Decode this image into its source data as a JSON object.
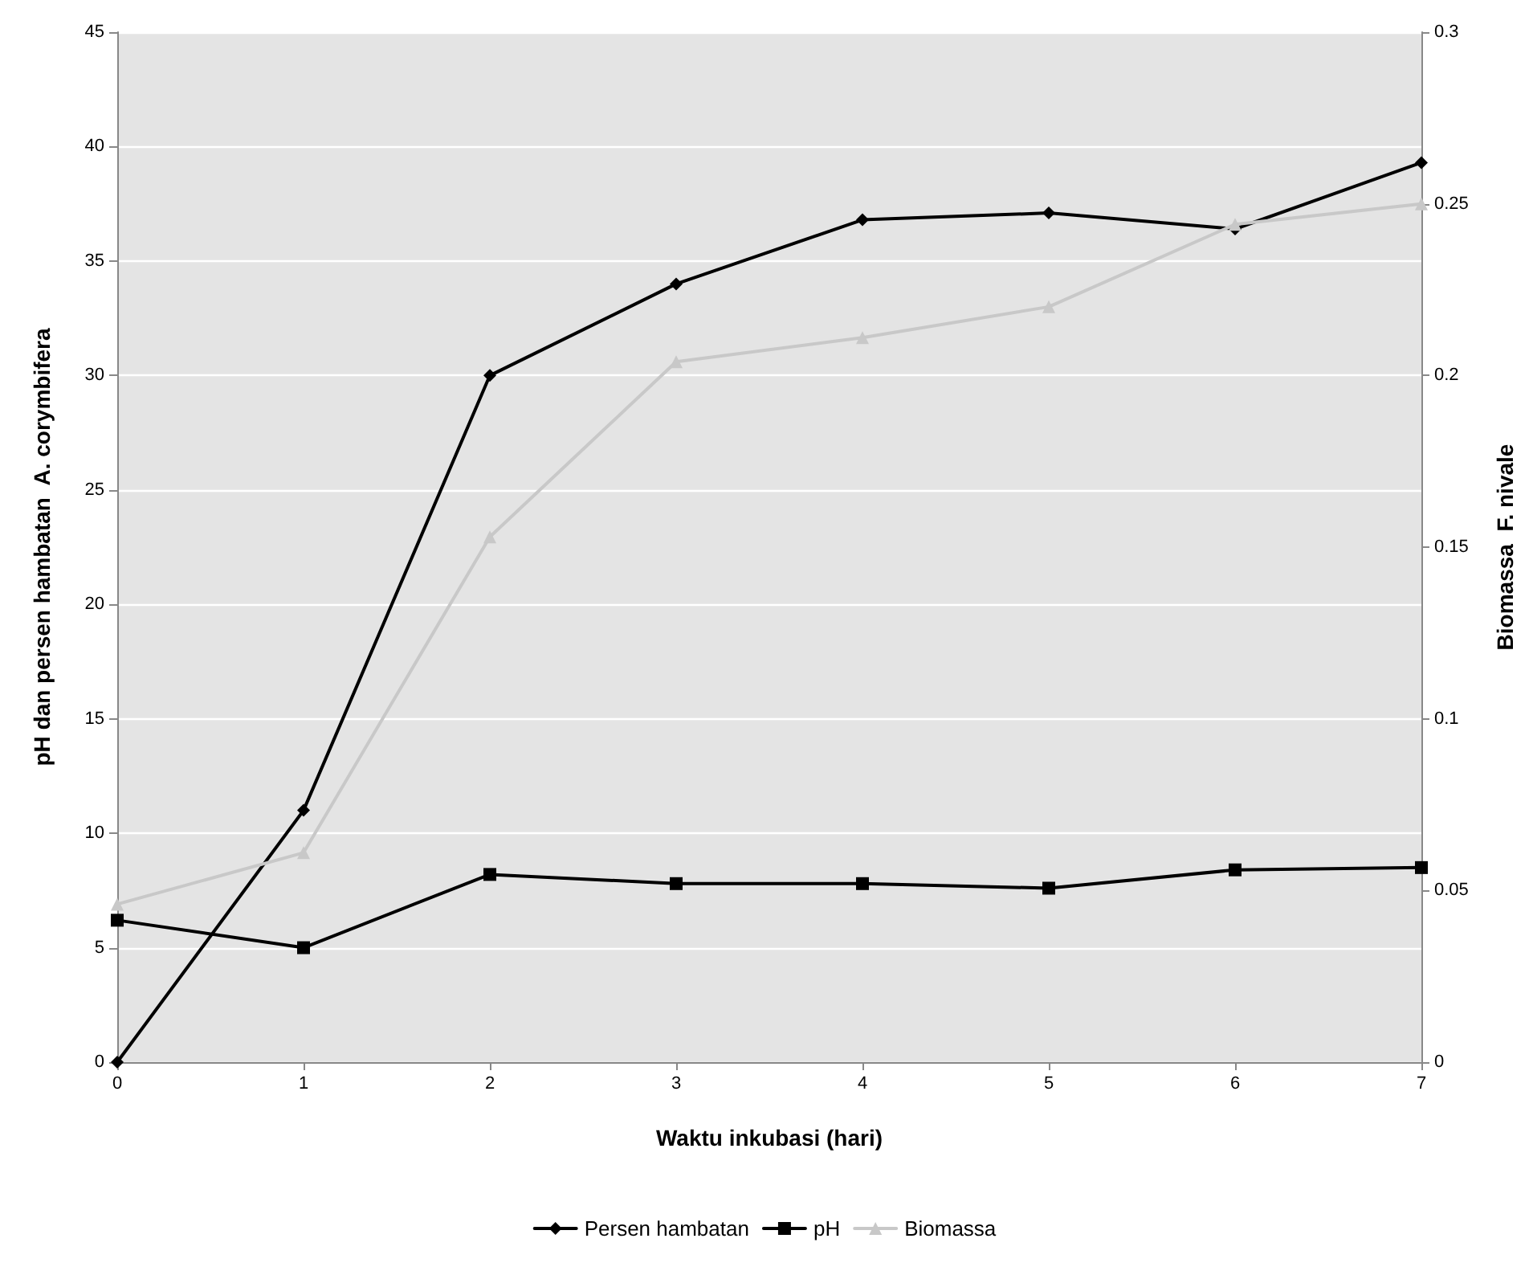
{
  "chart_data": {
    "type": "line",
    "xlabel": "Waktu inkubasi (hari)",
    "ylabel": "pH dan persen hambatan  A. corymbifera",
    "y2label": "Biomassa  F. nivale",
    "categories": [
      "0",
      "1",
      "2",
      "3",
      "4",
      "5",
      "6",
      "7"
    ],
    "series": [
      {
        "name": "Persen hambatan",
        "color": "#000000",
        "marker": "diamond",
        "values": [
          0,
          11,
          30,
          34,
          36.8,
          37.1,
          36.4,
          39.3
        ]
      },
      {
        "name": "pH",
        "color": "#000000",
        "marker": "square",
        "values": [
          6.2,
          5.0,
          8.2,
          7.8,
          7.8,
          7.6,
          8.4,
          8.5
        ]
      },
      {
        "name": "Biomassa",
        "color": "#c8c8c8",
        "marker": "triangle",
        "axis": "y2",
        "values": [
          0.046,
          0.061,
          0.153,
          0.204,
          0.211,
          0.22,
          0.244,
          0.25
        ]
      }
    ],
    "ylim": [
      0,
      45
    ],
    "yticks": [
      0,
      5,
      10,
      15,
      20,
      25,
      30,
      35,
      40,
      45
    ],
    "y2lim": [
      0,
      0.3
    ],
    "y2ticks": [
      0,
      0.05,
      0.1,
      0.15,
      0.2,
      0.25,
      0.3
    ],
    "grid": "y",
    "legend": "bottom"
  }
}
